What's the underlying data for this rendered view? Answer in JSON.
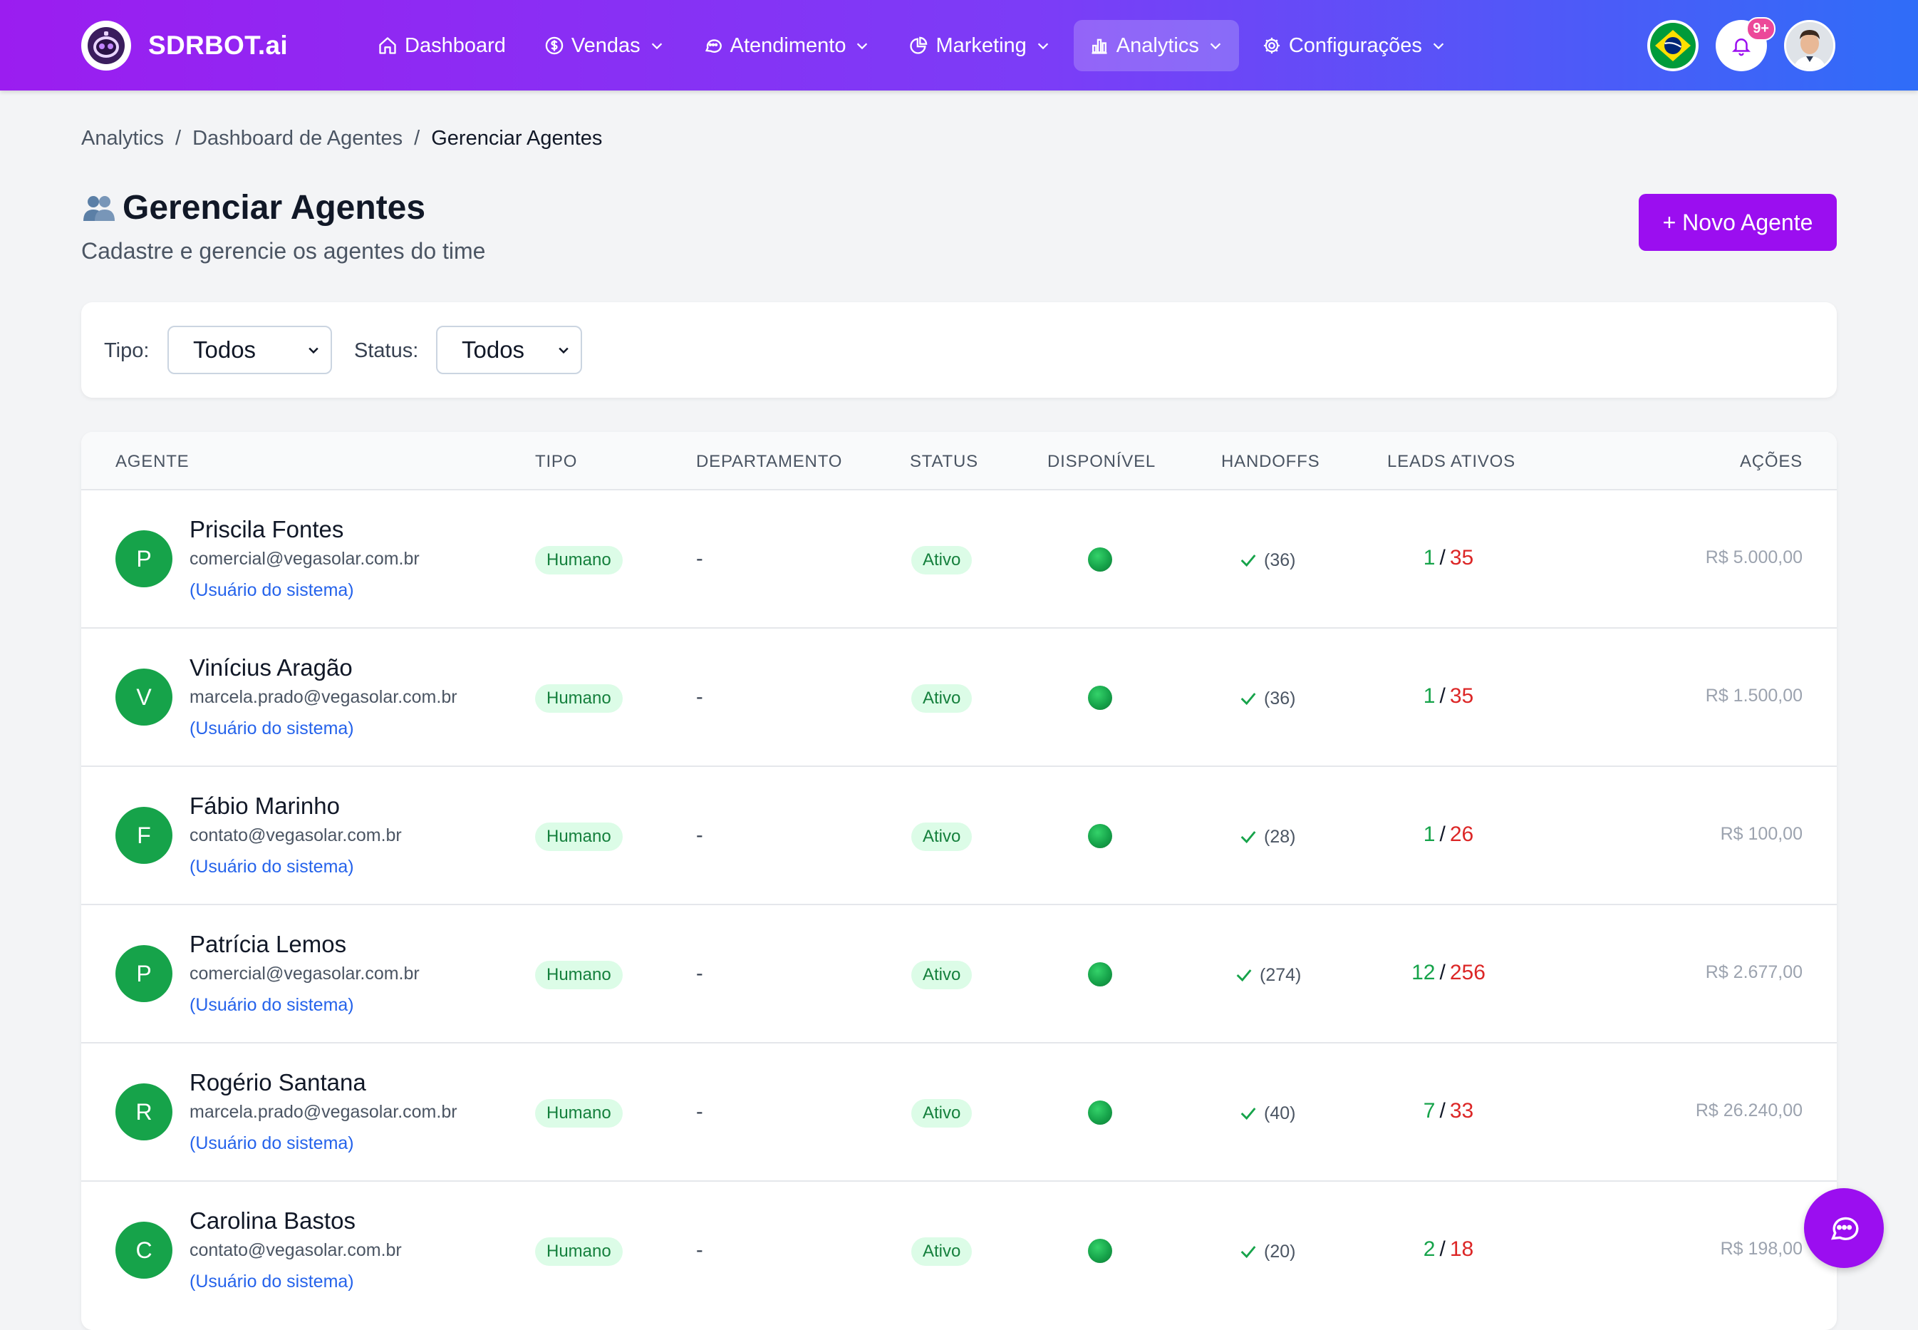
{
  "header": {
    "brand": "SDRBOT.ai",
    "nav": [
      {
        "label": "Dashboard",
        "icon": "home-icon",
        "has_dropdown": false,
        "active": false
      },
      {
        "label": "Vendas",
        "icon": "dollar-icon",
        "has_dropdown": true,
        "active": false
      },
      {
        "label": "Atendimento",
        "icon": "chat-icon",
        "has_dropdown": true,
        "active": false
      },
      {
        "label": "Marketing",
        "icon": "pie-chart-icon",
        "has_dropdown": true,
        "active": false
      },
      {
        "label": "Analytics",
        "icon": "bar-chart-icon",
        "has_dropdown": true,
        "active": true
      },
      {
        "label": "Configurações",
        "icon": "gear-icon",
        "has_dropdown": true,
        "active": false
      }
    ],
    "notification_badge": "9+"
  },
  "breadcrumb": [
    "Analytics",
    "Dashboard de Agentes",
    "Gerenciar Agentes"
  ],
  "page": {
    "title": "Gerenciar Agentes",
    "title_icon": "people-icon",
    "subtitle": "Cadastre e gerencie os agentes do time",
    "new_button": "+ Novo Agente"
  },
  "filters": {
    "tipo_label": "Tipo:",
    "tipo_value": "Todos",
    "status_label": "Status:",
    "status_value": "Todos"
  },
  "table": {
    "columns": [
      "AGENTE",
      "TIPO",
      "DEPARTAMENTO",
      "STATUS",
      "DISPONÍVEL",
      "HANDOFFS",
      "LEADS ATIVOS",
      "AÇÕES"
    ],
    "rows": [
      {
        "initial": "P",
        "name": "Priscila Fontes",
        "email": "comercial@vegasolar.com.br",
        "system": "(Usuário do sistema)",
        "type": "Humano",
        "department": "-",
        "status": "Ativo",
        "available": true,
        "handoffs": "(36)",
        "leads_active": "1",
        "leads_total": "35",
        "value": "R$ 5.000,00"
      },
      {
        "initial": "V",
        "name": "Vinícius Aragão",
        "email": "marcela.prado@vegasolar.com.br",
        "system": "(Usuário do sistema)",
        "type": "Humano",
        "department": "-",
        "status": "Ativo",
        "available": true,
        "handoffs": "(36)",
        "leads_active": "1",
        "leads_total": "35",
        "value": "R$ 1.500,00"
      },
      {
        "initial": "F",
        "name": "Fábio Marinho",
        "email": "contato@vegasolar.com.br",
        "system": "(Usuário do sistema)",
        "type": "Humano",
        "department": "-",
        "status": "Ativo",
        "available": true,
        "handoffs": "(28)",
        "leads_active": "1",
        "leads_total": "26",
        "value": "R$ 100,00"
      },
      {
        "initial": "P",
        "name": "Patrícia Lemos",
        "email": "comercial@vegasolar.com.br",
        "system": "(Usuário do sistema)",
        "type": "Humano",
        "department": "-",
        "status": "Ativo",
        "available": true,
        "handoffs": "(274)",
        "leads_active": "12",
        "leads_total": "256",
        "value": "R$ 2.677,00"
      },
      {
        "initial": "R",
        "name": "Rogério Santana",
        "email": "marcela.prado@vegasolar.com.br",
        "system": "(Usuário do sistema)",
        "type": "Humano",
        "department": "-",
        "status": "Ativo",
        "available": true,
        "handoffs": "(40)",
        "leads_active": "7",
        "leads_total": "33",
        "value": "R$ 26.240,00"
      },
      {
        "initial": "C",
        "name": "Carolina Bastos",
        "email": "contato@vegasolar.com.br",
        "system": "(Usuário do sistema)",
        "type": "Humano",
        "department": "-",
        "status": "Ativo",
        "available": true,
        "handoffs": "(20)",
        "leads_active": "2",
        "leads_total": "18",
        "value": "R$ 198,00"
      }
    ]
  },
  "colors": {
    "accent": "#9b0ef0",
    "nav_gradient_start": "#9b1df0",
    "nav_gradient_end": "#2f6df8",
    "avatar_green": "#16a34a",
    "leads_active": "#16a34a",
    "leads_total": "#dc2626"
  }
}
